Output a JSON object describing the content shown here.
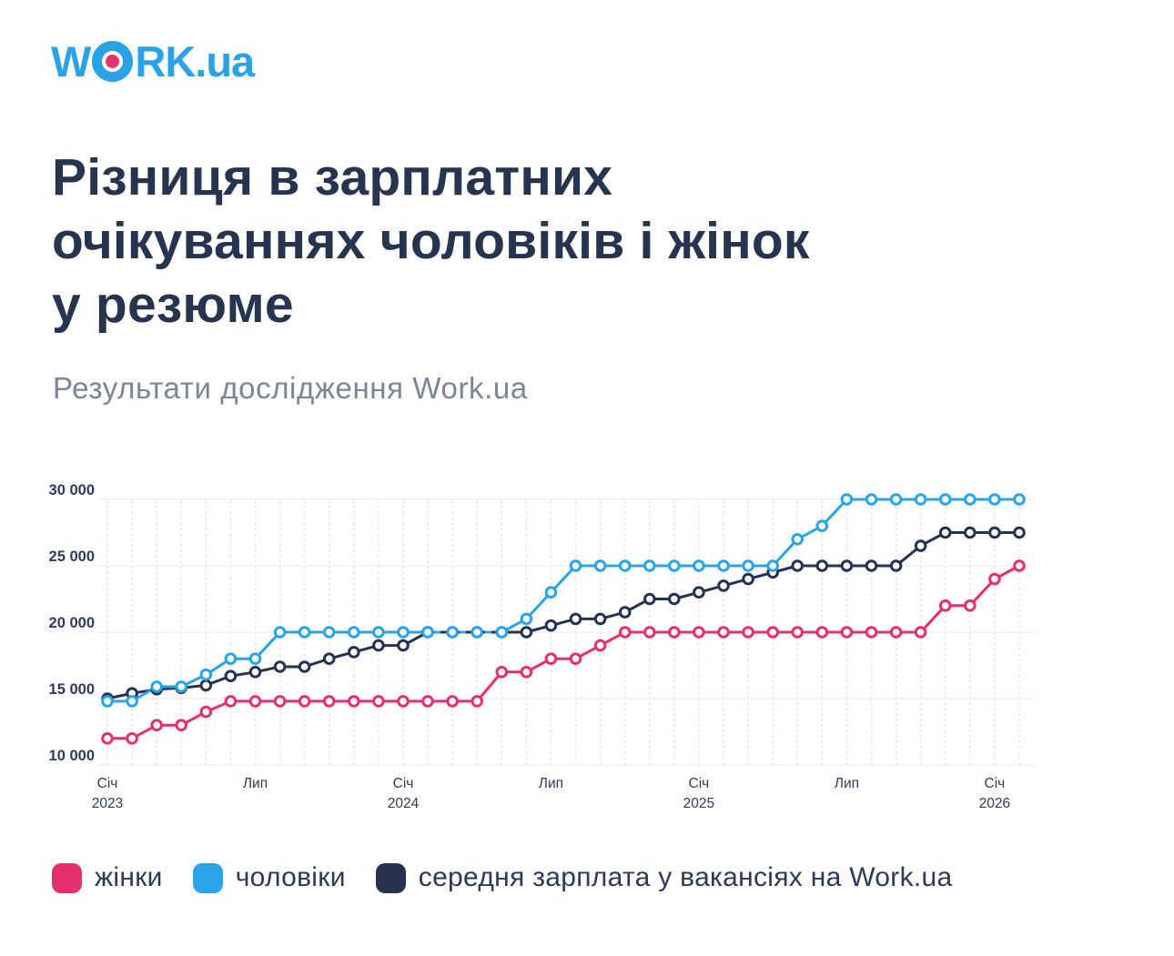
{
  "logo": {
    "part1": "W",
    "part2": "RK",
    "suffix": ".ua"
  },
  "header": {
    "title_lines": [
      "Різниця в зарплатних",
      "очікуваннях чоловіків і жінок",
      "у резюме"
    ],
    "subtitle": "Результати дослідження Work.ua"
  },
  "chart_data": {
    "type": "line",
    "title": "",
    "x_unit": "month",
    "start_month": "Січ 2023",
    "end_month": "Лют 2026",
    "n_points": 38,
    "ylim": [
      10000,
      30000
    ],
    "y_ticks": [
      30000,
      25000,
      20000,
      15000,
      10000
    ],
    "y_tick_labels": [
      "30 000",
      "25 000",
      "20 000",
      "15 000",
      "10 000"
    ],
    "x_ticks": [
      {
        "m": 0,
        "line1": "Січ",
        "line2": "2023"
      },
      {
        "m": 6,
        "line1": "Лип",
        "line2": ""
      },
      {
        "m": 12,
        "line1": "Січ",
        "line2": "2024"
      },
      {
        "m": 18,
        "line1": "Лип",
        "line2": ""
      },
      {
        "m": 24,
        "line1": "Січ",
        "line2": "2025"
      },
      {
        "m": 30,
        "line1": "Лип",
        "line2": ""
      },
      {
        "m": 36,
        "line1": "Січ",
        "line2": "2026"
      }
    ],
    "grid": {
      "vertical": "dotted-per-month",
      "horizontal": "per-5000"
    },
    "legend_position": "bottom",
    "series": [
      {
        "name": "жінки",
        "color": "#E62F6E",
        "values": [
          12000,
          12000,
          13000,
          13000,
          14000,
          14800,
          14800,
          14800,
          14800,
          14800,
          14800,
          14800,
          14800,
          14800,
          14800,
          14800,
          17000,
          17000,
          18000,
          18000,
          19000,
          20000,
          20000,
          20000,
          20000,
          20000,
          20000,
          20000,
          20000,
          20000,
          20000,
          20000,
          20000,
          20000,
          22000,
          22000,
          24000,
          25000
        ]
      },
      {
        "name": "чоловіки",
        "color": "#2AA3E8",
        "values": [
          14800,
          14800,
          15900,
          15900,
          16800,
          18000,
          18000,
          20000,
          20000,
          20000,
          20000,
          20000,
          20000,
          20000,
          20000,
          20000,
          20000,
          21000,
          23000,
          25000,
          25000,
          25000,
          25000,
          25000,
          25000,
          25000,
          25000,
          25000,
          27000,
          28000,
          30000,
          30000,
          30000,
          30000,
          30000,
          30000,
          30000,
          30000
        ]
      },
      {
        "name": "середня зарплата у вакансіях на Work.ua",
        "color": "#263250",
        "values": [
          15000,
          15400,
          15700,
          15800,
          16000,
          16700,
          17000,
          17400,
          17400,
          18000,
          18500,
          19000,
          19000,
          20000,
          20000,
          20000,
          20000,
          20000,
          20500,
          21000,
          21000,
          21500,
          22500,
          22500,
          23000,
          23500,
          24000,
          24500,
          25000,
          25000,
          25000,
          25000,
          25000,
          26500,
          27500,
          27500,
          27500,
          27500
        ]
      }
    ],
    "overlap_note": "men and average-vacancy lines coincide at 20000 (Feb–May 2024); drawn as dashed segment",
    "colors": {
      "grid_vertical": "#F3DCE4",
      "grid_horizontal": "#ECEEF4",
      "axis_labels": "#2E3C59",
      "title": "#273450",
      "subtitle": "#7B8597",
      "logo_blue": "#29A2E6",
      "logo_dot_pink": "#E8316F"
    }
  },
  "legend": {
    "items": [
      {
        "label": "жінки"
      },
      {
        "label": "чоловіки"
      },
      {
        "label": "середня зарплата у вакансіях на Work.ua"
      }
    ]
  }
}
